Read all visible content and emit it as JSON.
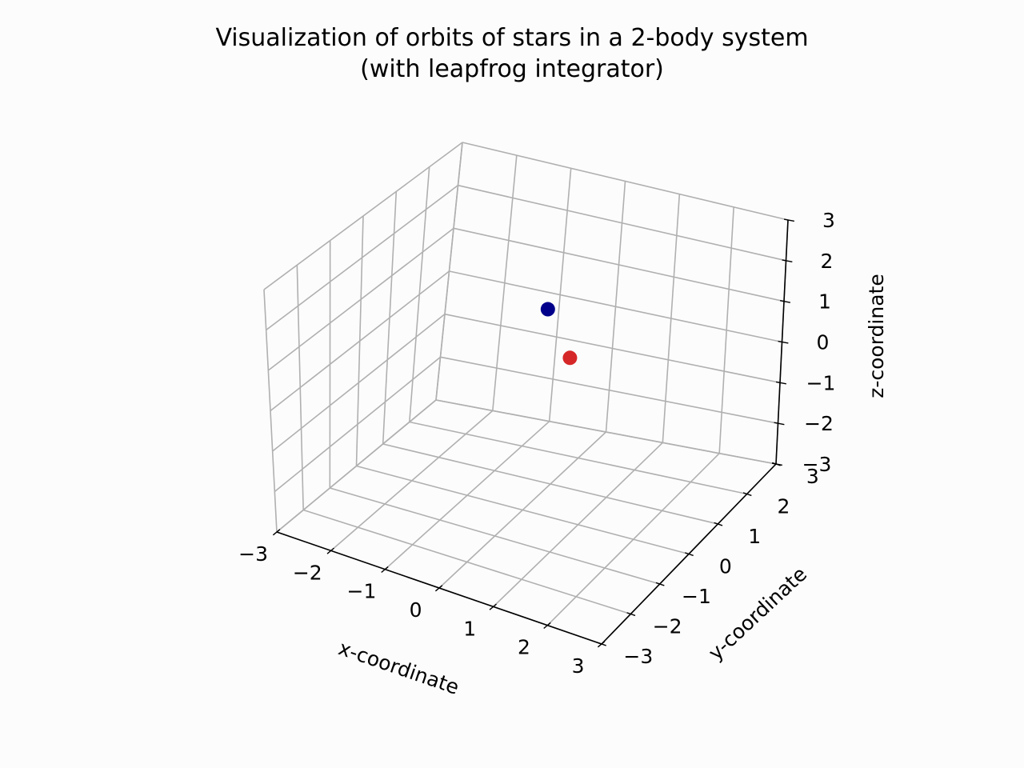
{
  "chart_data": {
    "type": "scatter",
    "projection": "3d",
    "title": "Visualization of orbits of stars in a 2-body system",
    "subtitle": "(with leapfrog integrator)",
    "xlabel": "x-coordinate",
    "ylabel": "y-coordinate",
    "zlabel": "z-coordinate",
    "xlim": [
      -3,
      3
    ],
    "ylim": [
      -3,
      3
    ],
    "zlim": [
      -3,
      3
    ],
    "xticks": [
      "−3",
      "−2",
      "−1",
      "0",
      "1",
      "2",
      "3"
    ],
    "yticks": [
      "−3",
      "−2",
      "−1",
      "0",
      "1",
      "2",
      "3"
    ],
    "zticks": [
      "−3",
      "−2",
      "−1",
      "0",
      "1",
      "2",
      "3"
    ],
    "grid": true,
    "colors": {
      "star_1": "#00008b",
      "star_2": "#d62728",
      "grid": "#b0b0b0",
      "axis": "#000000",
      "background": "#fcfcfc"
    },
    "points": [
      {
        "x": -1.0,
        "y": 2.6,
        "z": -0.1,
        "color": "#00008b"
      },
      {
        "x": -0.4,
        "y": 2.3,
        "z": -0.9,
        "color": "#d62728"
      }
    ]
  }
}
